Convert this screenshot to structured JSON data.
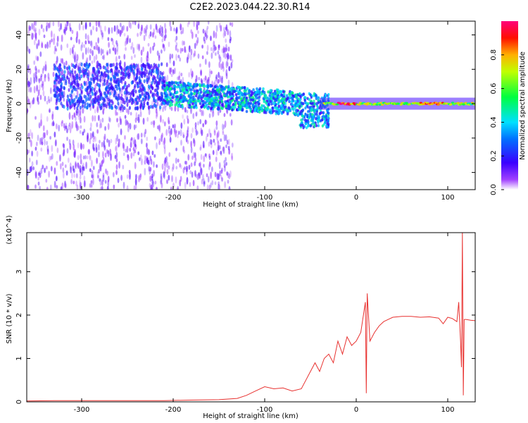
{
  "title": "C2E2.2023.044.22.30.R14",
  "colors": {
    "snr_line": "#e8312f",
    "frame": "#000000"
  },
  "chart_data": [
    {
      "type": "heatmap",
      "xlabel": "Height of straight line (km)",
      "ylabel": "Frequency (Hz)",
      "xlim": [
        -360,
        130
      ],
      "ylim": [
        -50,
        48
      ],
      "xticks": [
        -300,
        -200,
        -100,
        0,
        100
      ],
      "yticks": [
        -40,
        -20,
        0,
        20,
        40
      ],
      "colorbar": {
        "label": "Normalized spectral amplitude",
        "range": [
          0,
          1
        ],
        "ticks": [
          0.0,
          0.2,
          0.4,
          0.6,
          0.8
        ],
        "tick_labels": [
          "0.0",
          "0.2",
          "0.4",
          "0.6",
          "0.8"
        ],
        "colormap": "rainbow (white/violet → blue → cyan → green → yellow → red → magenta)"
      },
      "features": [
        {
          "x_range": [
            -360,
            -140
          ],
          "freq_range": [
            -50,
            48
          ],
          "amplitude": "low (0.0–0.1) scattered noise"
        },
        {
          "x_range": [
            -330,
            -210
          ],
          "freq_center": 10,
          "freq_width": 20,
          "amplitude": "0.1–0.3"
        },
        {
          "x_range": [
            -210,
            -60
          ],
          "freq_center": 5,
          "freq_width": 14,
          "amplitude": "0.2–0.55"
        },
        {
          "x_range": [
            -60,
            -30
          ],
          "freq_center": -5,
          "freq_width": 18,
          "amplitude": "0.2–0.5"
        },
        {
          "x_range": [
            -30,
            130
          ],
          "freq_center": 0,
          "freq_width": 4,
          "amplitude": "0.6–1.0"
        }
      ]
    },
    {
      "type": "line",
      "xlabel": "Height of straight line (km)",
      "ylabel": "SNR (10 * v/v)",
      "y_multiplier": "(x10^4)",
      "xlim": [
        -360,
        130
      ],
      "ylim": [
        0,
        3.9
      ],
      "xticks": [
        -300,
        -200,
        -100,
        0,
        100
      ],
      "yticks": [
        0,
        1,
        2,
        3
      ],
      "series": [
        {
          "x": [
            -360,
            -330,
            -300,
            -270,
            -240,
            -210,
            -180,
            -150,
            -130,
            -120,
            -110,
            -100,
            -90,
            -80,
            -70,
            -60,
            -55,
            -50,
            -45,
            -40,
            -35,
            -30,
            -25,
            -20,
            -15,
            -10,
            -5,
            0,
            5,
            10,
            11,
            12,
            15,
            20,
            25,
            30,
            35,
            40,
            50,
            60,
            70,
            80,
            90,
            95,
            100,
            105,
            110,
            112,
            114,
            115,
            116,
            117,
            118,
            120,
            125,
            130
          ],
          "y": [
            0.02,
            0.03,
            0.03,
            0.03,
            0.03,
            0.03,
            0.04,
            0.05,
            0.08,
            0.15,
            0.25,
            0.35,
            0.3,
            0.32,
            0.25,
            0.3,
            0.5,
            0.7,
            0.9,
            0.7,
            1.0,
            1.1,
            0.9,
            1.4,
            1.1,
            1.5,
            1.3,
            1.4,
            1.6,
            2.3,
            0.2,
            2.5,
            1.4,
            1.6,
            1.75,
            1.85,
            1.9,
            1.95,
            1.97,
            1.97,
            1.95,
            1.96,
            1.93,
            1.8,
            1.95,
            1.92,
            1.85,
            2.3,
            1.4,
            0.8,
            3.9,
            0.15,
            1.9,
            1.9,
            1.88,
            1.87
          ]
        }
      ]
    }
  ]
}
